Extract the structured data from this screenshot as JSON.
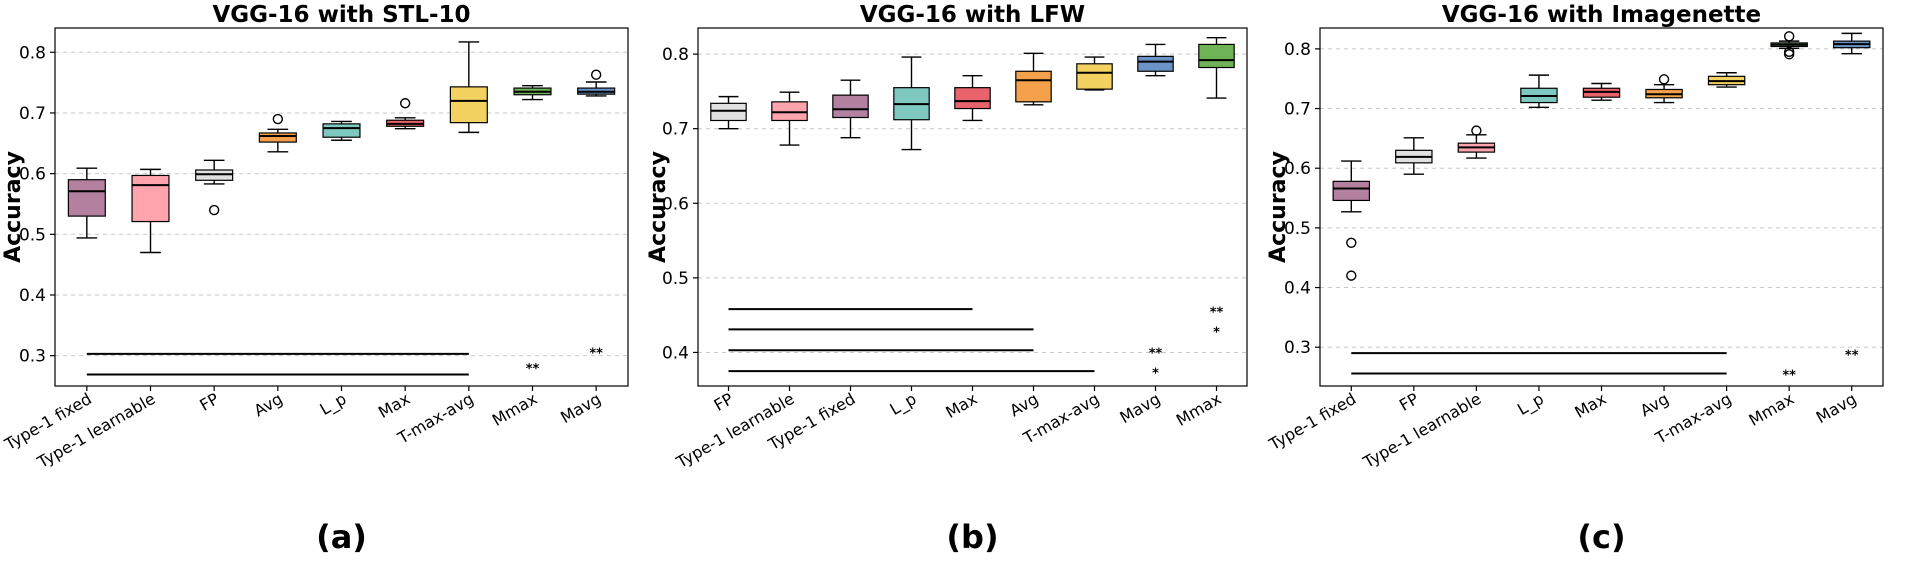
{
  "chart_data": [
    {
      "type": "box",
      "title": "VGG-16 with STL-10",
      "panel_label": "(a)",
      "ylabel": "Accuracy",
      "ylim": [
        0.25,
        0.84
      ],
      "yticks": [
        0.3,
        0.4,
        0.5,
        0.6,
        0.7,
        0.8
      ],
      "grid": true,
      "categories": [
        "Type-1 fixed",
        "Type-1 learnable",
        "FP",
        "Avg",
        "L_p",
        "Max",
        "T-max-avg",
        "Mmax",
        "Mavg"
      ],
      "colors": [
        "#b3809f",
        "#ffa3ad",
        "#e0e0e0",
        "#f5a04b",
        "#7fc8c0",
        "#e8636b",
        "#f3d262",
        "#6eb356",
        "#6c93c6"
      ],
      "boxes": [
        {
          "whislo": 0.494,
          "q1": 0.53,
          "med": 0.571,
          "q3": 0.59,
          "whishi": 0.609,
          "fliers": []
        },
        {
          "whislo": 0.47,
          "q1": 0.521,
          "med": 0.581,
          "q3": 0.597,
          "whishi": 0.607,
          "fliers": []
        },
        {
          "whislo": 0.583,
          "q1": 0.589,
          "med": 0.599,
          "q3": 0.606,
          "whishi": 0.622,
          "fliers": [
            0.54
          ]
        },
        {
          "whislo": 0.636,
          "q1": 0.652,
          "med": 0.662,
          "q3": 0.667,
          "whishi": 0.673,
          "fliers": [
            0.69
          ]
        },
        {
          "whislo": 0.655,
          "q1": 0.66,
          "med": 0.675,
          "q3": 0.682,
          "whishi": 0.686,
          "fliers": []
        },
        {
          "whislo": 0.674,
          "q1": 0.678,
          "med": 0.682,
          "q3": 0.688,
          "whishi": 0.692,
          "fliers": [
            0.716
          ]
        },
        {
          "whislo": 0.668,
          "q1": 0.684,
          "med": 0.72,
          "q3": 0.743,
          "whishi": 0.817,
          "fliers": []
        },
        {
          "whislo": 0.722,
          "q1": 0.73,
          "med": 0.735,
          "q3": 0.741,
          "whishi": 0.745,
          "fliers": []
        },
        {
          "whislo": 0.728,
          "q1": 0.731,
          "med": 0.735,
          "q3": 0.741,
          "whishi": 0.751,
          "fliers": [
            0.763
          ]
        }
      ],
      "sig_lines": [
        {
          "from": "Type-1 fixed",
          "to": "T-max-avg",
          "y": 0.303
        },
        {
          "from": "Type-1 fixed",
          "to": "T-max-avg",
          "y": 0.269
        }
      ],
      "sig_marks": [
        {
          "category": "Mmax",
          "y": 0.28,
          "label": "**"
        },
        {
          "category": "Mavg",
          "y": 0.305,
          "label": "**"
        }
      ]
    },
    {
      "type": "box",
      "title": "VGG-16 with LFW",
      "panel_label": "(b)",
      "ylabel": "Accuracy",
      "ylim": [
        0.355,
        0.835
      ],
      "yticks": [
        0.4,
        0.5,
        0.6,
        0.7,
        0.8
      ],
      "grid": true,
      "categories": [
        "FP",
        "Type-1 learnable",
        "Type-1 fixed",
        "L_p",
        "Max",
        "Avg",
        "T-max-avg",
        "Mavg",
        "Mmax"
      ],
      "colors": [
        "#e0e0e0",
        "#ffa3ad",
        "#b3809f",
        "#7fc8c0",
        "#e8636b",
        "#f5a04b",
        "#f3d262",
        "#6c93c6",
        "#6eb356"
      ],
      "boxes": [
        {
          "whislo": 0.7,
          "q1": 0.711,
          "med": 0.724,
          "q3": 0.734,
          "whishi": 0.743,
          "fliers": []
        },
        {
          "whislo": 0.678,
          "q1": 0.711,
          "med": 0.722,
          "q3": 0.736,
          "whishi": 0.749,
          "fliers": []
        },
        {
          "whislo": 0.688,
          "q1": 0.715,
          "med": 0.726,
          "q3": 0.745,
          "whishi": 0.765,
          "fliers": []
        },
        {
          "whislo": 0.672,
          "q1": 0.712,
          "med": 0.733,
          "q3": 0.755,
          "whishi": 0.796,
          "fliers": []
        },
        {
          "whislo": 0.711,
          "q1": 0.727,
          "med": 0.737,
          "q3": 0.755,
          "whishi": 0.771,
          "fliers": []
        },
        {
          "whislo": 0.732,
          "q1": 0.736,
          "med": 0.765,
          "q3": 0.777,
          "whishi": 0.801,
          "fliers": []
        },
        {
          "whislo": 0.752,
          "q1": 0.753,
          "med": 0.775,
          "q3": 0.787,
          "whishi": 0.796,
          "fliers": []
        },
        {
          "whislo": 0.771,
          "q1": 0.777,
          "med": 0.79,
          "q3": 0.797,
          "whishi": 0.813,
          "fliers": []
        },
        {
          "whislo": 0.741,
          "q1": 0.782,
          "med": 0.792,
          "q3": 0.813,
          "whishi": 0.822,
          "fliers": []
        }
      ],
      "sig_lines": [
        {
          "from": "FP",
          "to": "Max",
          "y": 0.458
        },
        {
          "from": "FP",
          "to": "Avg",
          "y": 0.431
        },
        {
          "from": "FP",
          "to": "Avg",
          "y": 0.403
        },
        {
          "from": "FP",
          "to": "T-max-avg",
          "y": 0.375
        }
      ],
      "sig_marks": [
        {
          "category": "Mmax",
          "y": 0.455,
          "label": "**"
        },
        {
          "category": "Mmax",
          "y": 0.428,
          "label": "*"
        },
        {
          "category": "Mavg",
          "y": 0.4,
          "label": "**"
        },
        {
          "category": "Mavg",
          "y": 0.373,
          "label": "*"
        }
      ]
    },
    {
      "type": "box",
      "title": "VGG-16 with Imagenette",
      "panel_label": "(c)",
      "ylabel": "Accuracy",
      "ylim": [
        0.235,
        0.835
      ],
      "yticks": [
        0.3,
        0.4,
        0.5,
        0.6,
        0.7,
        0.8
      ],
      "grid": true,
      "categories": [
        "Type-1 fixed",
        "FP",
        "Type-1 learnable",
        "L_p",
        "Max",
        "Avg",
        "T-max-avg",
        "Mmax",
        "Mavg"
      ],
      "colors": [
        "#b3809f",
        "#e0e0e0",
        "#ffa3ad",
        "#7fc8c0",
        "#e8636b",
        "#f5a04b",
        "#f3d262",
        "#6eb356",
        "#6c93c6"
      ],
      "boxes": [
        {
          "whislo": 0.527,
          "q1": 0.546,
          "med": 0.566,
          "q3": 0.578,
          "whishi": 0.612,
          "fliers": [
            0.475,
            0.42
          ]
        },
        {
          "whislo": 0.59,
          "q1": 0.609,
          "med": 0.619,
          "q3": 0.63,
          "whishi": 0.651,
          "fliers": []
        },
        {
          "whislo": 0.617,
          "q1": 0.627,
          "med": 0.635,
          "q3": 0.642,
          "whishi": 0.656,
          "fliers": [
            0.663
          ]
        },
        {
          "whislo": 0.702,
          "q1": 0.71,
          "med": 0.721,
          "q3": 0.734,
          "whishi": 0.756,
          "fliers": []
        },
        {
          "whislo": 0.714,
          "q1": 0.719,
          "med": 0.728,
          "q3": 0.734,
          "whishi": 0.742,
          "fliers": []
        },
        {
          "whislo": 0.71,
          "q1": 0.718,
          "med": 0.724,
          "q3": 0.732,
          "whishi": 0.74,
          "fliers": [
            0.749
          ]
        },
        {
          "whislo": 0.736,
          "q1": 0.74,
          "med": 0.746,
          "q3": 0.754,
          "whishi": 0.76,
          "fliers": []
        },
        {
          "whislo": 0.801,
          "q1": 0.804,
          "med": 0.807,
          "q3": 0.81,
          "whishi": 0.813,
          "fliers": [
            0.821,
            0.795,
            0.791
          ]
        },
        {
          "whislo": 0.792,
          "q1": 0.802,
          "med": 0.808,
          "q3": 0.813,
          "whishi": 0.826,
          "fliers": []
        }
      ],
      "sig_lines": [
        {
          "from": "Type-1 fixed",
          "to": "T-max-avg",
          "y": 0.29
        },
        {
          "from": "Type-1 fixed",
          "to": "T-max-avg",
          "y": 0.256
        }
      ],
      "sig_marks": [
        {
          "category": "Mmax",
          "y": 0.254,
          "label": "**"
        },
        {
          "category": "Mavg",
          "y": 0.288,
          "label": "**"
        }
      ]
    }
  ]
}
